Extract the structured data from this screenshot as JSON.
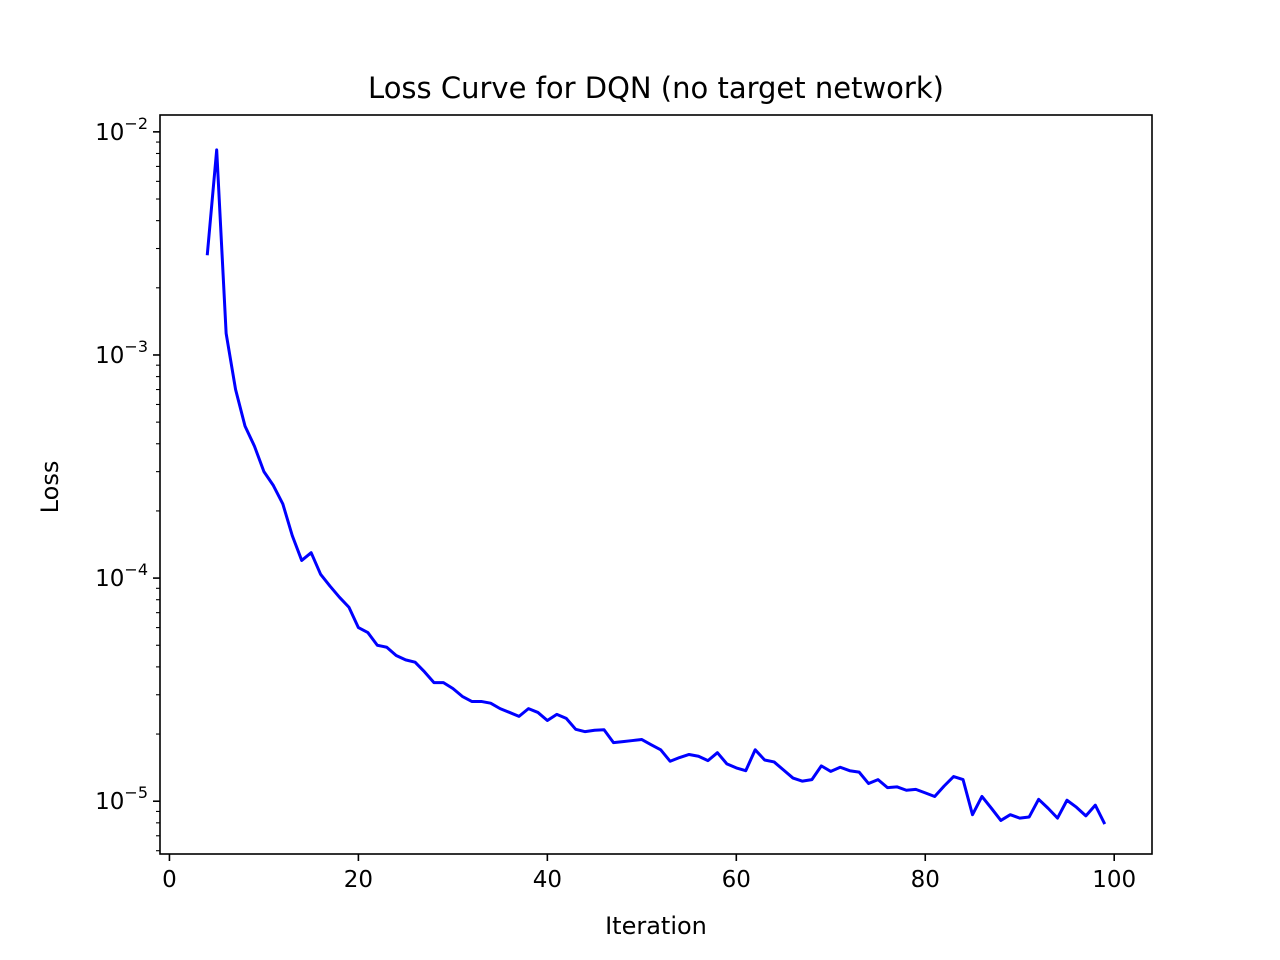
{
  "chart_data": {
    "type": "line",
    "title": "Loss Curve for DQN (no target network)",
    "xlabel": "Iteration",
    "ylabel": "Loss",
    "yscale": "log",
    "xlim": [
      -1,
      104
    ],
    "ylim": [
      5.8e-06,
      0.0119
    ],
    "grid": false,
    "line_color": "#0000ff",
    "x_ticks": [
      0,
      20,
      40,
      60,
      80,
      100
    ],
    "x_tick_labels": [
      "0",
      "20",
      "40",
      "60",
      "80",
      "100"
    ],
    "y_ticks": [
      {
        "value": 0.01,
        "base": "10",
        "exp": "−2"
      },
      {
        "value": 0.001,
        "base": "10",
        "exp": "−3"
      },
      {
        "value": 0.0001,
        "base": "10",
        "exp": "−4"
      },
      {
        "value": 1e-05,
        "base": "10",
        "exp": "−5"
      }
    ],
    "series": [
      {
        "x": [
          4,
          5,
          6,
          7,
          8,
          9,
          10,
          11,
          12,
          13,
          14,
          15,
          16,
          17,
          18,
          19,
          20,
          21,
          22,
          23,
          24,
          25,
          26,
          27,
          28,
          29,
          30,
          31,
          32,
          33,
          34,
          35,
          36,
          37,
          38,
          39,
          40,
          41,
          42,
          43,
          44,
          45,
          46,
          47,
          48,
          49,
          50,
          51,
          52,
          53,
          54,
          55,
          56,
          57,
          58,
          59,
          60,
          61,
          62,
          63,
          64,
          65,
          66,
          67,
          68,
          69,
          70,
          71,
          72,
          73,
          74,
          75,
          76,
          77,
          78,
          79,
          80,
          81,
          82,
          83,
          84,
          85,
          86,
          87,
          88,
          89,
          90,
          91,
          92,
          93,
          94,
          95,
          96,
          97,
          98,
          99
        ],
        "values": [
          0.0028,
          0.0083,
          0.00125,
          0.0007,
          0.00048,
          0.00039,
          0.0003,
          0.00026,
          0.000215,
          0.000155,
          0.00012,
          0.00013,
          0.000104,
          9.2e-05,
          8.2e-05,
          7.4e-05,
          6e-05,
          5.7e-05,
          5e-05,
          4.9e-05,
          4.5e-05,
          4.3e-05,
          4.2e-05,
          3.8e-05,
          3.4e-05,
          3.4e-05,
          3.2e-05,
          2.95e-05,
          2.8e-05,
          2.8e-05,
          2.75e-05,
          2.6e-05,
          2.5e-05,
          2.4e-05,
          2.6e-05,
          2.5e-05,
          2.3e-05,
          2.45e-05,
          2.35e-05,
          2.1e-05,
          2.05e-05,
          2.08e-05,
          2.09e-05,
          1.83e-05,
          1.85e-05,
          1.87e-05,
          1.89e-05,
          1.79e-05,
          1.7e-05,
          1.51e-05,
          1.57e-05,
          1.62e-05,
          1.59e-05,
          1.52e-05,
          1.65e-05,
          1.47e-05,
          1.41e-05,
          1.37e-05,
          1.7e-05,
          1.53e-05,
          1.5e-05,
          1.38e-05,
          1.27e-05,
          1.23e-05,
          1.25e-05,
          1.44e-05,
          1.36e-05,
          1.42e-05,
          1.37e-05,
          1.35e-05,
          1.2e-05,
          1.25e-05,
          1.15e-05,
          1.16e-05,
          1.12e-05,
          1.13e-05,
          1.09e-05,
          1.05e-05,
          1.17e-05,
          1.29e-05,
          1.25e-05,
          8.7e-06,
          1.05e-05,
          9.3e-06,
          8.2e-06,
          8.7e-06,
          8.4e-06,
          8.5e-06,
          1.02e-05,
          9.3e-06,
          8.4e-06,
          1.01e-05,
          9.4e-06,
          8.6e-06,
          9.6e-06,
          7.9e-06
        ]
      }
    ]
  }
}
